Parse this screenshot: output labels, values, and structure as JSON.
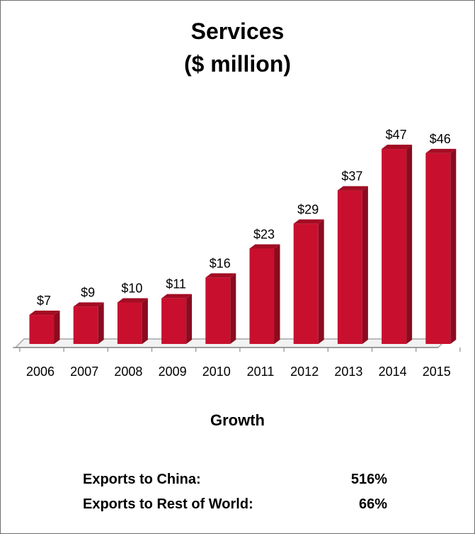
{
  "chart_data": {
    "type": "bar",
    "title_line1": "Services",
    "title_line2": "($ million)",
    "categories": [
      "2006",
      "2007",
      "2008",
      "2009",
      "2010",
      "2011",
      "2012",
      "2013",
      "2014",
      "2015"
    ],
    "values": [
      7,
      9,
      10,
      11,
      16,
      23,
      29,
      37,
      47,
      46
    ],
    "value_labels": [
      "$7",
      "$9",
      "$10",
      "$11",
      "$16",
      "$23",
      "$29",
      "$37",
      "$47",
      "$46"
    ],
    "ylim": [
      0,
      50
    ],
    "grid": false,
    "bar_color": "#c8102e"
  },
  "growth": {
    "title": "Growth",
    "rows": [
      {
        "label": "Exports to China:",
        "value": "516%"
      },
      {
        "label": "Exports to Rest of World:",
        "value": "66%"
      }
    ]
  }
}
